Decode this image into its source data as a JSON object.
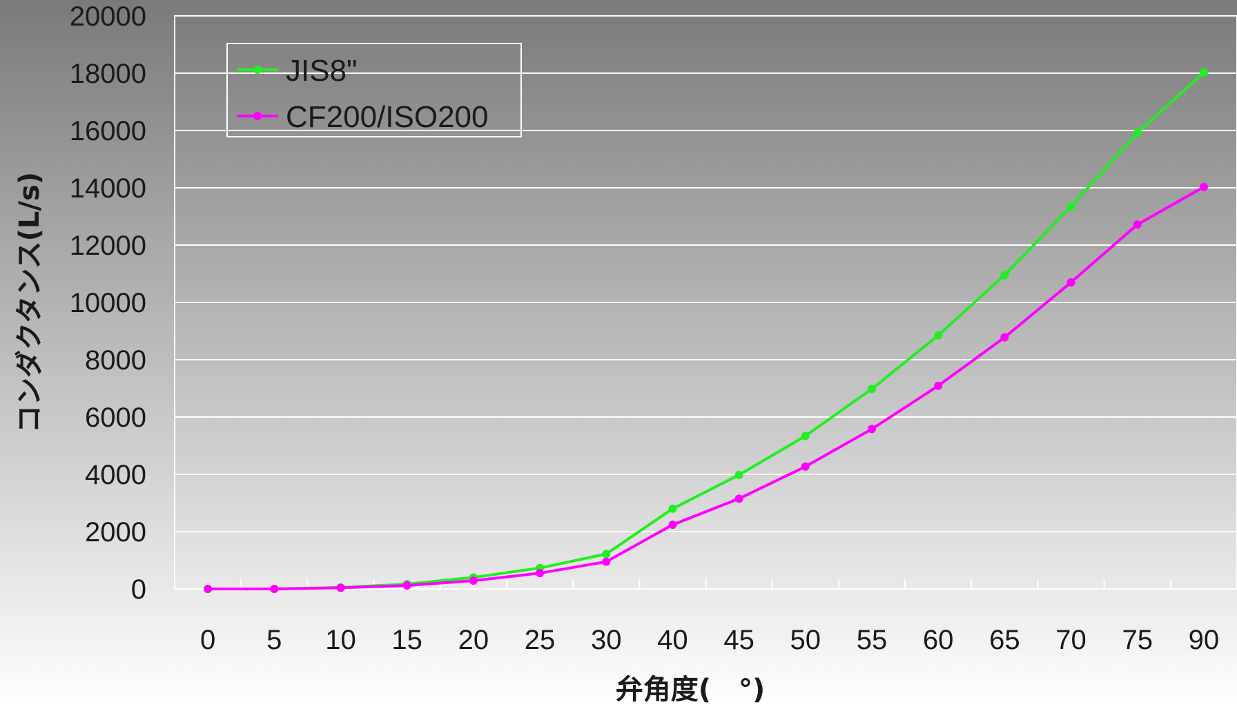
{
  "chart_data": {
    "type": "line",
    "xlabel": "弁角度(　°)",
    "ylabel": "コンダクタンス(L/s)",
    "categories": [
      "0",
      "5",
      "10",
      "15",
      "20",
      "25",
      "30",
      "40",
      "45",
      "50",
      "55",
      "60",
      "65",
      "70",
      "75",
      "90"
    ],
    "ylim": [
      0,
      20000
    ],
    "yticks": [
      "0",
      "2000",
      "4000",
      "6000",
      "8000",
      "10000",
      "12000",
      "14000",
      "16000",
      "18000",
      "20000"
    ],
    "grid": "horizontal",
    "legend_position": "top-left",
    "series": [
      {
        "name": "JIS8\"",
        "color": "#22ee22",
        "values": [
          0,
          0,
          50,
          170,
          400,
          730,
          1220,
          2800,
          3980,
          5340,
          6980,
          8850,
          10950,
          13350,
          15920,
          18020
        ]
      },
      {
        "name": "CF200/ISO200",
        "color": "#ff00ff",
        "values": [
          0,
          0,
          40,
          120,
          290,
          550,
          950,
          2240,
          3150,
          4270,
          5580,
          7090,
          8780,
          10700,
          12720,
          14030
        ]
      }
    ]
  }
}
